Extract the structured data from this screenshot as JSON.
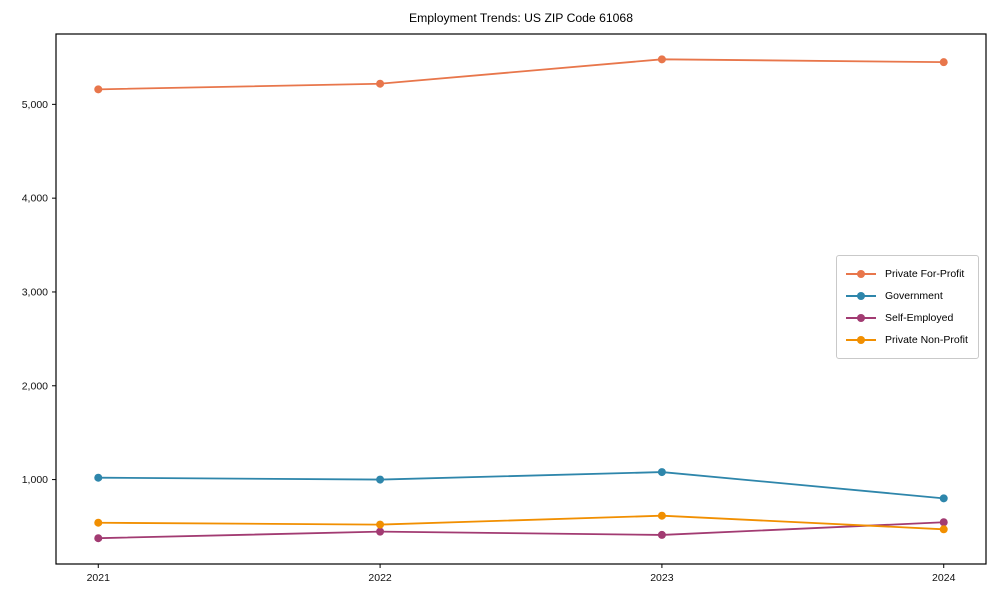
{
  "chart_data": {
    "type": "line",
    "title": "Employment Trends: US ZIP Code 61068",
    "xlabel": "",
    "ylabel": "",
    "x": [
      2021,
      2022,
      2023,
      2024
    ],
    "x_tick_labels": [
      "2021",
      "2022",
      "2023",
      "2024"
    ],
    "y_ticks": [
      {
        "value": 1000,
        "label": "1,000"
      },
      {
        "value": 2000,
        "label": "2,000"
      },
      {
        "value": 3000,
        "label": "3,000"
      },
      {
        "value": 4000,
        "label": "4,000"
      },
      {
        "value": 5000,
        "label": "5,000"
      }
    ],
    "xlim": [
      2020.85,
      2024.15
    ],
    "ylim": [
      100,
      5750
    ],
    "grid": false,
    "legend_position": "center-right",
    "marker": "circle",
    "series": [
      {
        "name": "Private For-Profit",
        "color": "#E8764B",
        "values": [
          5160,
          5220,
          5480,
          5450
        ]
      },
      {
        "name": "Government",
        "color": "#2E86AB",
        "values": [
          1020,
          1000,
          1080,
          800
        ]
      },
      {
        "name": "Self-Employed",
        "color": "#A23B72",
        "values": [
          375,
          445,
          410,
          545
        ]
      },
      {
        "name": "Private Non-Profit",
        "color": "#F18F01",
        "values": [
          540,
          520,
          615,
          470
        ]
      }
    ]
  }
}
